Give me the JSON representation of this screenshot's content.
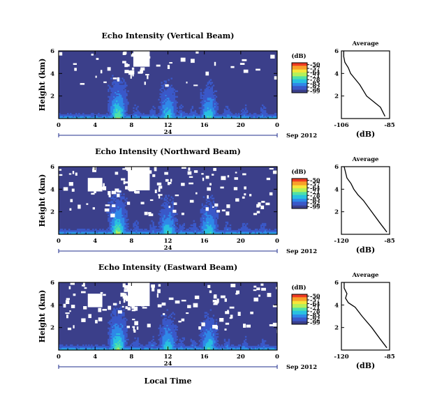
{
  "colorbar": {
    "unit": "(dB)",
    "ticks": [
      "-50",
      "-57",
      "-64",
      "-71",
      "-78",
      "-85",
      "-92",
      "-99"
    ],
    "colors": [
      "#3b3f8a",
      "#3a58c8",
      "#2f88e8",
      "#29c0e0",
      "#4fe0a8",
      "#b4f05a",
      "#f6e63a",
      "#f8a02a",
      "#ee3a22"
    ]
  },
  "chart_data": [
    {
      "type": "heatmap",
      "title": "Echo Intensity (Vertical Beam)",
      "ylabel": "Height (km)",
      "y_ticks": [
        "6",
        "4",
        "2"
      ],
      "y_range": [
        0,
        6
      ],
      "x_ticks": [
        "0",
        "4",
        "8",
        "12",
        "16",
        "20",
        "0"
      ],
      "x_range": [
        0,
        24
      ],
      "day_label": "24",
      "date_label": "Sep 2012",
      "z_range": [
        -99,
        -50
      ],
      "enhanced_echo_hours": [
        6.5,
        12,
        16.5
      ],
      "average_profile": {
        "title": "Average",
        "xlabel": "(dB)",
        "x_ticks": [
          "-106",
          "-85"
        ],
        "y_ticks": [
          "6",
          "4",
          "2"
        ],
        "x_range": [
          -106,
          -85
        ],
        "y_range": [
          0,
          6
        ],
        "height_km": [
          0.2,
          1.0,
          1.5,
          2.0,
          2.5,
          3.0,
          3.5,
          4.0,
          4.5,
          5.0,
          5.5,
          6.0
        ],
        "db": [
          -87,
          -89,
          -92,
          -95,
          -96.5,
          -98,
          -100,
          -102,
          -103,
          -104.5,
          -105,
          -105
        ]
      }
    },
    {
      "type": "heatmap",
      "title": "Echo Intensity (Northward Beam)",
      "ylabel": "Height (km)",
      "y_ticks": [
        "6",
        "4",
        "2"
      ],
      "y_range": [
        0,
        6
      ],
      "x_ticks": [
        "0",
        "4",
        "8",
        "12",
        "16",
        "20",
        "0"
      ],
      "x_range": [
        0,
        24
      ],
      "day_label": "24",
      "date_label": "Sep 2012",
      "z_range": [
        -99,
        -50
      ],
      "enhanced_echo_hours": [
        6.5,
        12,
        16.5
      ],
      "average_profile": {
        "title": "Average",
        "xlabel": "(dB)",
        "x_ticks": [
          "-120",
          "-85"
        ],
        "y_ticks": [
          "6",
          "4",
          "2"
        ],
        "x_range": [
          -120,
          -85
        ],
        "y_range": [
          0,
          6
        ],
        "height_km": [
          0.2,
          1.0,
          2.0,
          3.0,
          3.5,
          4.0,
          4.5,
          5.0,
          5.5,
          6.0
        ],
        "db": [
          -87,
          -92,
          -98,
          -104,
          -108,
          -111,
          -113,
          -116,
          -117,
          -118
        ]
      }
    },
    {
      "type": "heatmap",
      "title": "Echo Intensity (Eastward Beam)",
      "ylabel": "Height (km)",
      "y_ticks": [
        "6",
        "4",
        "2"
      ],
      "y_range": [
        0,
        6
      ],
      "x_ticks": [
        "0",
        "4",
        "8",
        "12",
        "16",
        "20",
        "0"
      ],
      "x_range": [
        0,
        24
      ],
      "day_label": "24",
      "date_label": "Sep 2012",
      "xlabel": "Local Time",
      "z_range": [
        -99,
        -50
      ],
      "enhanced_echo_hours": [
        6.5,
        12,
        16.5
      ],
      "average_profile": {
        "title": "Average",
        "xlabel": "(dB)",
        "x_ticks": [
          "-120",
          "-85"
        ],
        "y_ticks": [
          "6",
          "4",
          "2"
        ],
        "x_range": [
          -120,
          -85
        ],
        "y_range": [
          0,
          6
        ],
        "height_km": [
          0.2,
          1.0,
          2.0,
          3.0,
          3.8,
          4.2,
          4.6,
          5.0,
          5.5,
          6.0
        ],
        "db": [
          -87,
          -92,
          -98,
          -105,
          -110,
          -115,
          -117,
          -116,
          -118,
          -118
        ]
      }
    }
  ]
}
